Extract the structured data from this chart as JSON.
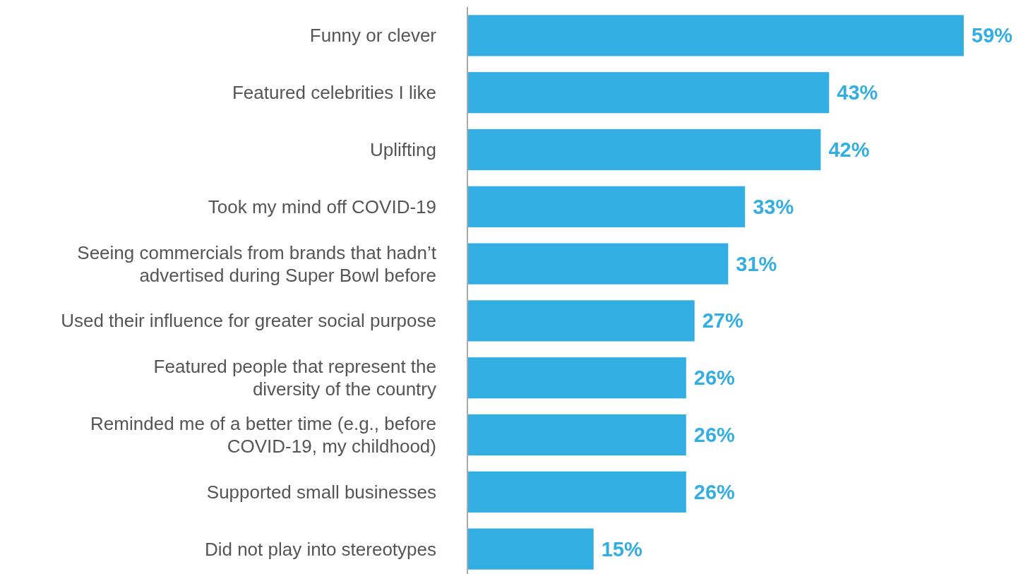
{
  "chart_data": {
    "type": "bar",
    "orientation": "horizontal",
    "categories": [
      "Funny or clever",
      "Featured celebrities I like",
      "Uplifting",
      "Took my mind off COVID-19",
      "Seeing commercials from brands that hadn’t\nadvertised during Super Bowl before",
      "Used their influence for greater social purpose",
      "Featured people that represent the\ndiversity of the country",
      "Reminded me of a better time (e.g., before\nCOVID-19, my childhood)",
      "Supported small businesses",
      "Did not play into stereotypes"
    ],
    "values": [
      59,
      43,
      42,
      33,
      31,
      27,
      26,
      26,
      26,
      15
    ],
    "value_labels": [
      "59%",
      "43%",
      "42%",
      "33%",
      "31%",
      "27%",
      "26%",
      "26%",
      "26%",
      "15%"
    ],
    "color": "#33aee3"
  }
}
